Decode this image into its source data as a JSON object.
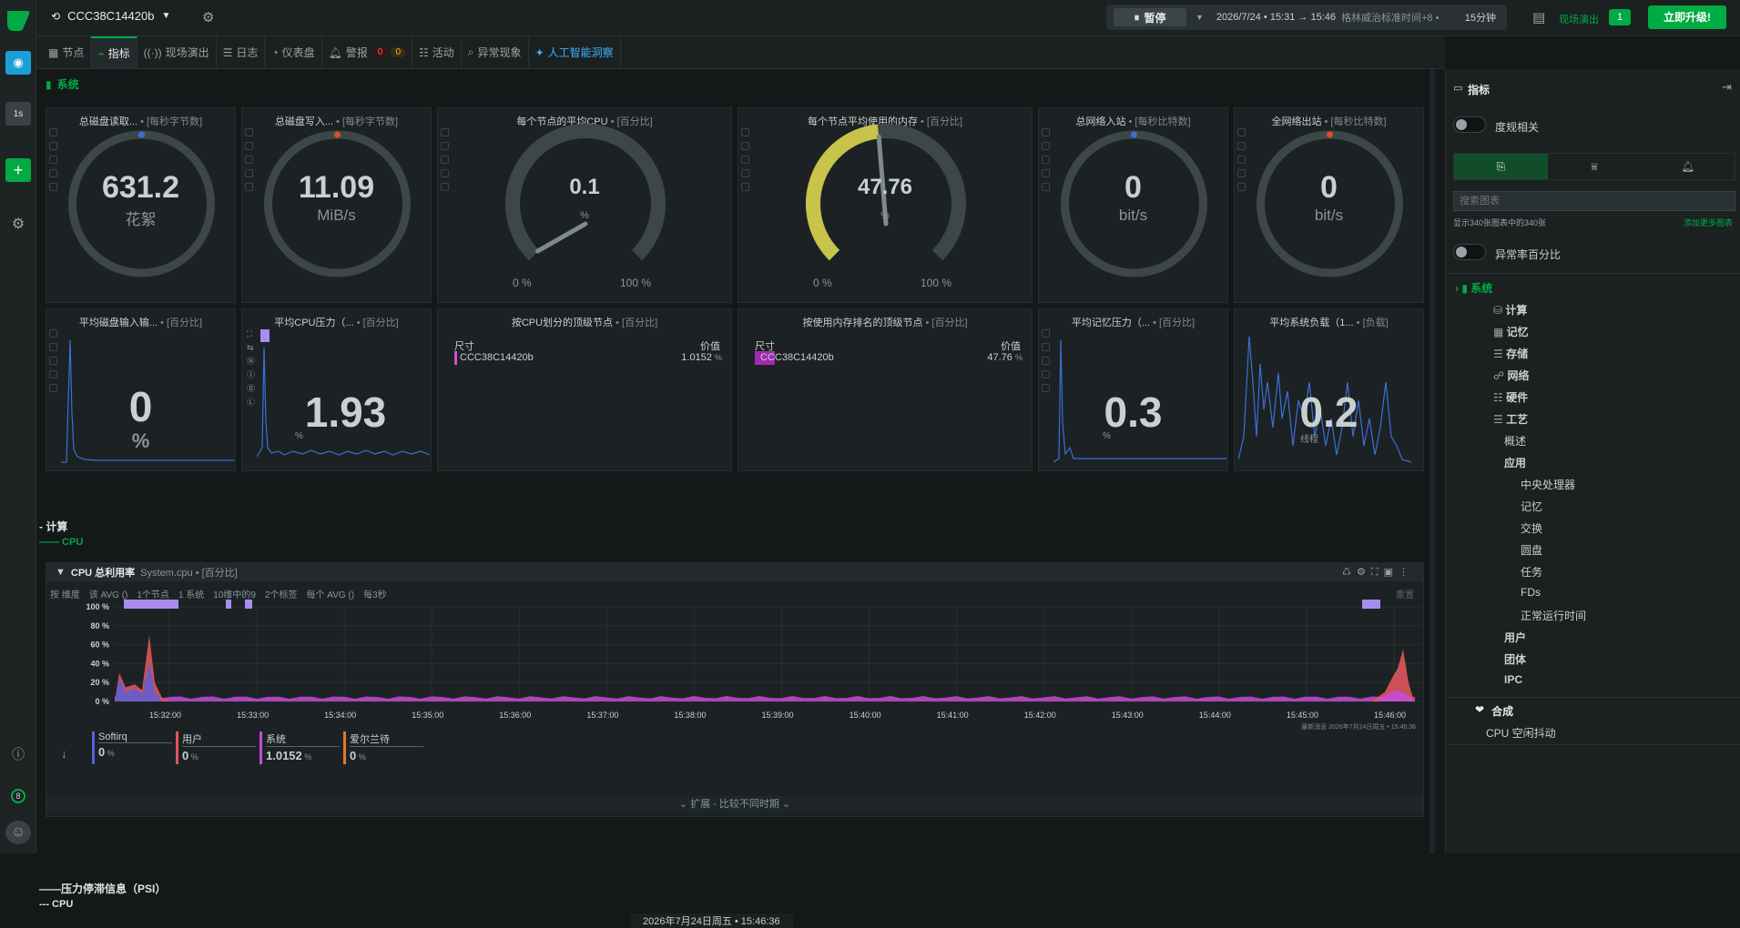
{
  "topbar": {
    "node_name": "CCC38C14420b",
    "pause_label": "暂停",
    "time_range": "2026/7/24 • 15:31 → 15:46",
    "timezone": "格林威治标准时间+8 •",
    "duration": "15分钟",
    "live_label": "现场演出",
    "live_count": "1",
    "upgrade_label": "立即升级!"
  },
  "leftbar": {
    "interval": "1s",
    "notif_count": "8"
  },
  "tabs": [
    {
      "label": "节点"
    },
    {
      "label": "指标"
    },
    {
      "label": "现场演出"
    },
    {
      "label": "日志"
    },
    {
      "label": "仪表盘"
    },
    {
      "label": "警报"
    },
    {
      "label": "活动"
    },
    {
      "label": "异常现象"
    },
    {
      "label": "人工智能洞察"
    }
  ],
  "alerts": {
    "critical": "0",
    "warning": "0"
  },
  "section": {
    "title": "系统"
  },
  "gauges": [
    {
      "title": "总磁盘读取...",
      "unit_label": "• [每秒字节数]",
      "value": "631.2",
      "unit": "花絮",
      "marker_color": "#3c6fd6"
    },
    {
      "title": "总磁盘写入...",
      "unit_label": "• [每秒字节数]",
      "value": "11.09",
      "unit": "MiB/s",
      "marker_color": "#d9531e"
    },
    {
      "title": "每个节点的平均CPU",
      "unit_label": "• [百分比]",
      "value": "0.1",
      "unit": "%",
      "min": "0 %",
      "max": "100 %",
      "fill": 0.001
    },
    {
      "title": "每个节点平均使用的内存",
      "unit_label": "• [百分比]",
      "value": "47.76",
      "unit": "%",
      "min": "0 %",
      "max": "100 %",
      "fill": 0.4776
    },
    {
      "title": "总网络入站",
      "unit_label": "• [每秒比特数]",
      "value": "0",
      "unit": "bit/s",
      "marker_color": "#3c6fd6"
    },
    {
      "title": "全网络出站",
      "unit_label": "• [每秒比特数]",
      "value": "0",
      "unit": "bit/s",
      "marker_color": "#d9531e"
    }
  ],
  "row2": [
    {
      "title": "平均磁盘输入输...",
      "unit_label": "• [百分比]",
      "value": "0",
      "unit": "%"
    },
    {
      "title": "平均CPU压力（...",
      "unit_label": "• [百分比]",
      "value": "1.93",
      "unit": "%"
    },
    {
      "title": "按CPU划分的顶级节点",
      "unit_label": "• [百分比]",
      "col1": "尺寸",
      "col2": "价值",
      "row_name": "CCC38C14420b",
      "row_value": "1.0152",
      "row_unit": "%"
    },
    {
      "title": "按使用内存排名的顶级节点",
      "unit_label": "• [百分比]",
      "col1": "尺寸",
      "col2": "价值",
      "row_name": "CCC38C14420b",
      "row_value": "47.76",
      "row_unit": "%"
    },
    {
      "title": "平均记忆压力（...",
      "unit_label": "• [百分比]",
      "value": "0.3",
      "unit": "%"
    },
    {
      "title": "平均系统负载（1...",
      "unit_label": "• [负载]",
      "value": "0.2",
      "unit": "线程"
    }
  ],
  "compute": {
    "heading": "- 计算",
    "sub": "—— CPU",
    "chart_title": "CPU 总利用率",
    "chart_context": "System.cpu • [百分比]",
    "controls": [
      "按 维度",
      "该 AVG ()",
      "1个节点",
      "1 系统",
      "10维中的9",
      "2个标签",
      "每个 AVG ()",
      "每3秒"
    ],
    "right_control": "重置",
    "footer_note": "最新消息  2026年7月24日周五 • 15:46:36",
    "expand_label": "扩展 - 比较不同时期"
  },
  "chart_data": {
    "type": "area",
    "title": "CPU 总利用率",
    "ylabel": "%",
    "ylim": [
      0,
      100
    ],
    "y_ticks": [
      "100 %",
      "80 %",
      "60 %",
      "40 %",
      "20 %",
      "0 %"
    ],
    "x_ticks": [
      "15:32:00",
      "15:33:00",
      "15:34:00",
      "15:35:00",
      "15:36:00",
      "15:37:00",
      "15:38:00",
      "15:39:00",
      "15:40:00",
      "15:41:00",
      "15:42:00",
      "15:43:00",
      "15:44:00",
      "15:45:00",
      "15:46:00"
    ],
    "series": [
      {
        "name": "Softirq",
        "color": "#5a5fd8",
        "last": "0"
      },
      {
        "name": "用户",
        "color": "#e0555b",
        "last": "0"
      },
      {
        "name": "系统",
        "color": "#c64bd8",
        "last": "1.0152"
      },
      {
        "name": "爱尔兰待",
        "color": "#e07a2a",
        "last": "0"
      }
    ]
  },
  "bottom": {
    "psi": "——压力停滞信息（PSI）",
    "cpu": "--- CPU",
    "timestamp": "2026年7月24日周五 • 15:46:36"
  },
  "right": {
    "title": "指标",
    "toggle1": "度规相关",
    "search_placeholder": "搜索图表",
    "showing": "显示340张图表中的340张",
    "add_more": "添加更多图表",
    "toggle2": "异常率百分比",
    "tree": [
      {
        "label": "系统",
        "level": 0
      },
      {
        "label": "计算",
        "level": 1
      },
      {
        "label": "记忆",
        "level": 1
      },
      {
        "label": "存储",
        "level": 1
      },
      {
        "label": "网络",
        "level": 1
      },
      {
        "label": "硬件",
        "level": 1
      },
      {
        "label": "工艺",
        "level": 1
      },
      {
        "label": "概述",
        "level": 2
      },
      {
        "label": "应用",
        "level": 2
      },
      {
        "label": "中央处理器",
        "level": 3
      },
      {
        "label": "记忆",
        "level": 3
      },
      {
        "label": "交换",
        "level": 3
      },
      {
        "label": "圆盘",
        "level": 3
      },
      {
        "label": "任务",
        "level": 3
      },
      {
        "label": "FDs",
        "level": 3
      },
      {
        "label": "正常运行时间",
        "level": 3
      },
      {
        "label": "用户",
        "level": 2
      },
      {
        "label": "团体",
        "level": 2
      },
      {
        "label": "IPC",
        "level": 2
      }
    ],
    "composite": "合成",
    "composite_item": "CPU 空闲抖动"
  }
}
